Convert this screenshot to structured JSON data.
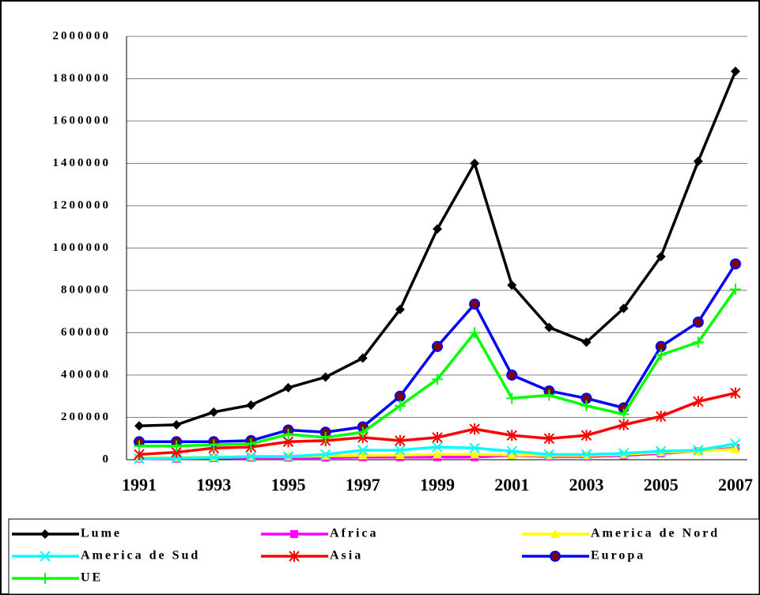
{
  "chart_data": {
    "type": "line",
    "categories": [
      "1991",
      null,
      "1993",
      null,
      "1995",
      null,
      "1997",
      null,
      "1999",
      null,
      "2001",
      null,
      "2003",
      null,
      "2005",
      null,
      "2007"
    ],
    "ylim": [
      0,
      2000000
    ],
    "yticks": [
      0,
      200000,
      400000,
      600000,
      800000,
      1000000,
      1200000,
      1400000,
      1600000,
      1800000,
      2000000
    ],
    "grid": true,
    "legend": "bottom",
    "series": [
      {
        "name": "Lume",
        "color": "#000000",
        "marker": "diamond",
        "values": [
          160000,
          165000,
          225000,
          258000,
          340000,
          390000,
          480000,
          710000,
          1090000,
          1400000,
          825000,
          625000,
          555000,
          715000,
          960000,
          1410000,
          1835000
        ]
      },
      {
        "name": "Africa",
        "color": "#ff00ff",
        "marker": "square",
        "values": [
          5000,
          5000,
          8000,
          10000,
          10000,
          10000,
          12000,
          12000,
          12000,
          12000,
          20000,
          15000,
          15000,
          20000,
          30000,
          40000,
          55000
        ]
      },
      {
        "name": "America de Nord",
        "color": "#ffff00",
        "marker": "triangle",
        "values": [
          8000,
          10000,
          12000,
          15000,
          15000,
          18000,
          20000,
          22000,
          25000,
          25000,
          22000,
          20000,
          20000,
          25000,
          35000,
          40000,
          50000
        ]
      },
      {
        "name": "America de Sud",
        "color": "#00ffff",
        "marker": "x",
        "values": [
          5000,
          8000,
          10000,
          15000,
          15000,
          25000,
          45000,
          45000,
          60000,
          55000,
          40000,
          25000,
          25000,
          30000,
          40000,
          45000,
          75000
        ]
      },
      {
        "name": "Asia",
        "color": "#ff0000",
        "marker": "star",
        "values": [
          25000,
          35000,
          55000,
          60000,
          85000,
          90000,
          105000,
          90000,
          105000,
          145000,
          115000,
          100000,
          115000,
          165000,
          205000,
          275000,
          315000
        ]
      },
      {
        "name": "Europa",
        "color": "#0000ff",
        "marker": "circle",
        "values": [
          85000,
          85000,
          85000,
          90000,
          140000,
          130000,
          155000,
          300000,
          535000,
          735000,
          400000,
          325000,
          290000,
          245000,
          535000,
          650000,
          925000
        ]
      },
      {
        "name": "UE",
        "color": "#00ff00",
        "marker": "plus",
        "values": [
          65000,
          65000,
          70000,
          75000,
          120000,
          105000,
          130000,
          255000,
          380000,
          600000,
          290000,
          305000,
          255000,
          215000,
          495000,
          555000,
          805000
        ]
      }
    ]
  }
}
